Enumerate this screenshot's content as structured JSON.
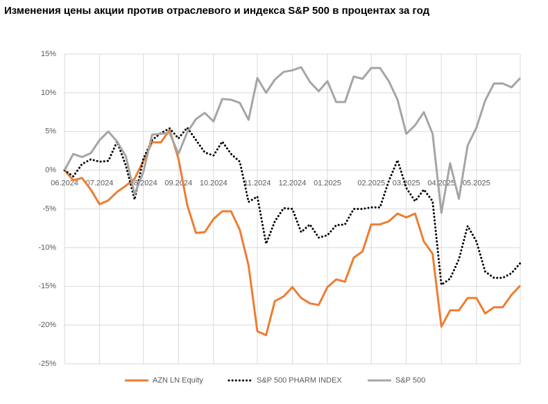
{
  "chart_data": {
    "type": "line",
    "title": "Изменения цены акции против отраслевого и индекса S&P 500 в процентах за год",
    "categories": [
      "06.2024",
      null,
      null,
      null,
      "07.2024",
      null,
      null,
      null,
      null,
      "08.2024",
      null,
      null,
      null,
      "09.2024",
      null,
      null,
      null,
      "10.2024",
      null,
      null,
      null,
      null,
      "11.2024",
      null,
      null,
      null,
      "12.2024",
      null,
      null,
      null,
      "01.2025",
      null,
      null,
      null,
      null,
      "02.2025",
      null,
      null,
      null,
      "03.2025",
      null,
      null,
      null,
      "04.2025",
      null,
      null,
      null,
      "05.2025",
      null,
      null,
      null,
      null,
      null
    ],
    "series": [
      {
        "name": "AZN LN  Equity",
        "color": "#ed7d31",
        "style": "solid",
        "values": [
          0,
          -1.3,
          -1,
          -2.5,
          -4.4,
          -3.9,
          -2.8,
          -2,
          -1.1,
          1.2,
          3.6,
          3.6,
          5.2,
          1.5,
          -4.5,
          -8.1,
          -8,
          -6.3,
          -5.3,
          -5.3,
          -7.7,
          -12.3,
          -20.8,
          -21.3,
          -16.9,
          -16.3,
          -15.1,
          -16.5,
          -17.2,
          -17.4,
          -15.1,
          -14.1,
          -14.4,
          -11.3,
          -10.5,
          -7,
          -7,
          -6.6,
          -5.6,
          -6.1,
          -5.6,
          -9.2,
          -10.8,
          -20.2,
          -18.1,
          -18.1,
          -16.5,
          -16.5,
          -18.5,
          -17.7,
          -17.7,
          -16.1,
          -14.9
        ]
      },
      {
        "name": "S&P 500 PHARM INDEX",
        "color": "#000000",
        "style": "dotted",
        "values": [
          0,
          -0.8,
          0.8,
          1.4,
          1.1,
          1.2,
          3.7,
          0.6,
          -3.8,
          1.5,
          3.9,
          4.8,
          5.4,
          4.1,
          5.5,
          3.9,
          2.3,
          1.9,
          3.7,
          2.1,
          1.1,
          -4.1,
          -3.4,
          -9.5,
          -6.6,
          -4.9,
          -5,
          -8,
          -7,
          -8.7,
          -8.4,
          -7.1,
          -7,
          -5,
          -5,
          -4.8,
          -4.8,
          -1.4,
          1.3,
          -2.3,
          -4,
          -2.5,
          -4,
          -14.8,
          -14,
          -11.5,
          -7.2,
          -9.2,
          -13.1,
          -13.9,
          -13.9,
          -13.3,
          -12
        ]
      },
      {
        "name": "S&P 500",
        "color": "#a5a5a5",
        "style": "solid",
        "values": [
          0,
          2.1,
          1.7,
          2.2,
          3.9,
          5,
          3.7,
          1.8,
          -3.1,
          -0.2,
          4.6,
          4.7,
          4.8,
          2.1,
          4.9,
          6.6,
          7.4,
          6.3,
          9.2,
          9.1,
          8.7,
          6.5,
          11.9,
          10,
          11.7,
          12.7,
          12.9,
          13.3,
          11.4,
          10.2,
          11.5,
          8.8,
          8.8,
          12.1,
          11.8,
          13.2,
          13.2,
          11.5,
          9.1,
          4.7,
          5.8,
          7.5,
          4.7,
          -5.5,
          0.9,
          -3.7,
          3.2,
          5.5,
          9,
          11.2,
          11.2,
          10.7,
          11.9
        ]
      }
    ],
    "ylim": [
      -25,
      15
    ],
    "yticks": [
      {
        "value": -25,
        "label": "-25%"
      },
      {
        "value": -20,
        "label": "-20%"
      },
      {
        "value": -15,
        "label": "-15%"
      },
      {
        "value": -10,
        "label": "-10%"
      },
      {
        "value": -5,
        "label": "-5%"
      },
      {
        "value": 0,
        "label": "0%"
      },
      {
        "value": 5,
        "label": "5%"
      },
      {
        "value": 10,
        "label": "10%"
      },
      {
        "value": 15,
        "label": "15%"
      }
    ],
    "grid": true,
    "legend": "bottom"
  }
}
